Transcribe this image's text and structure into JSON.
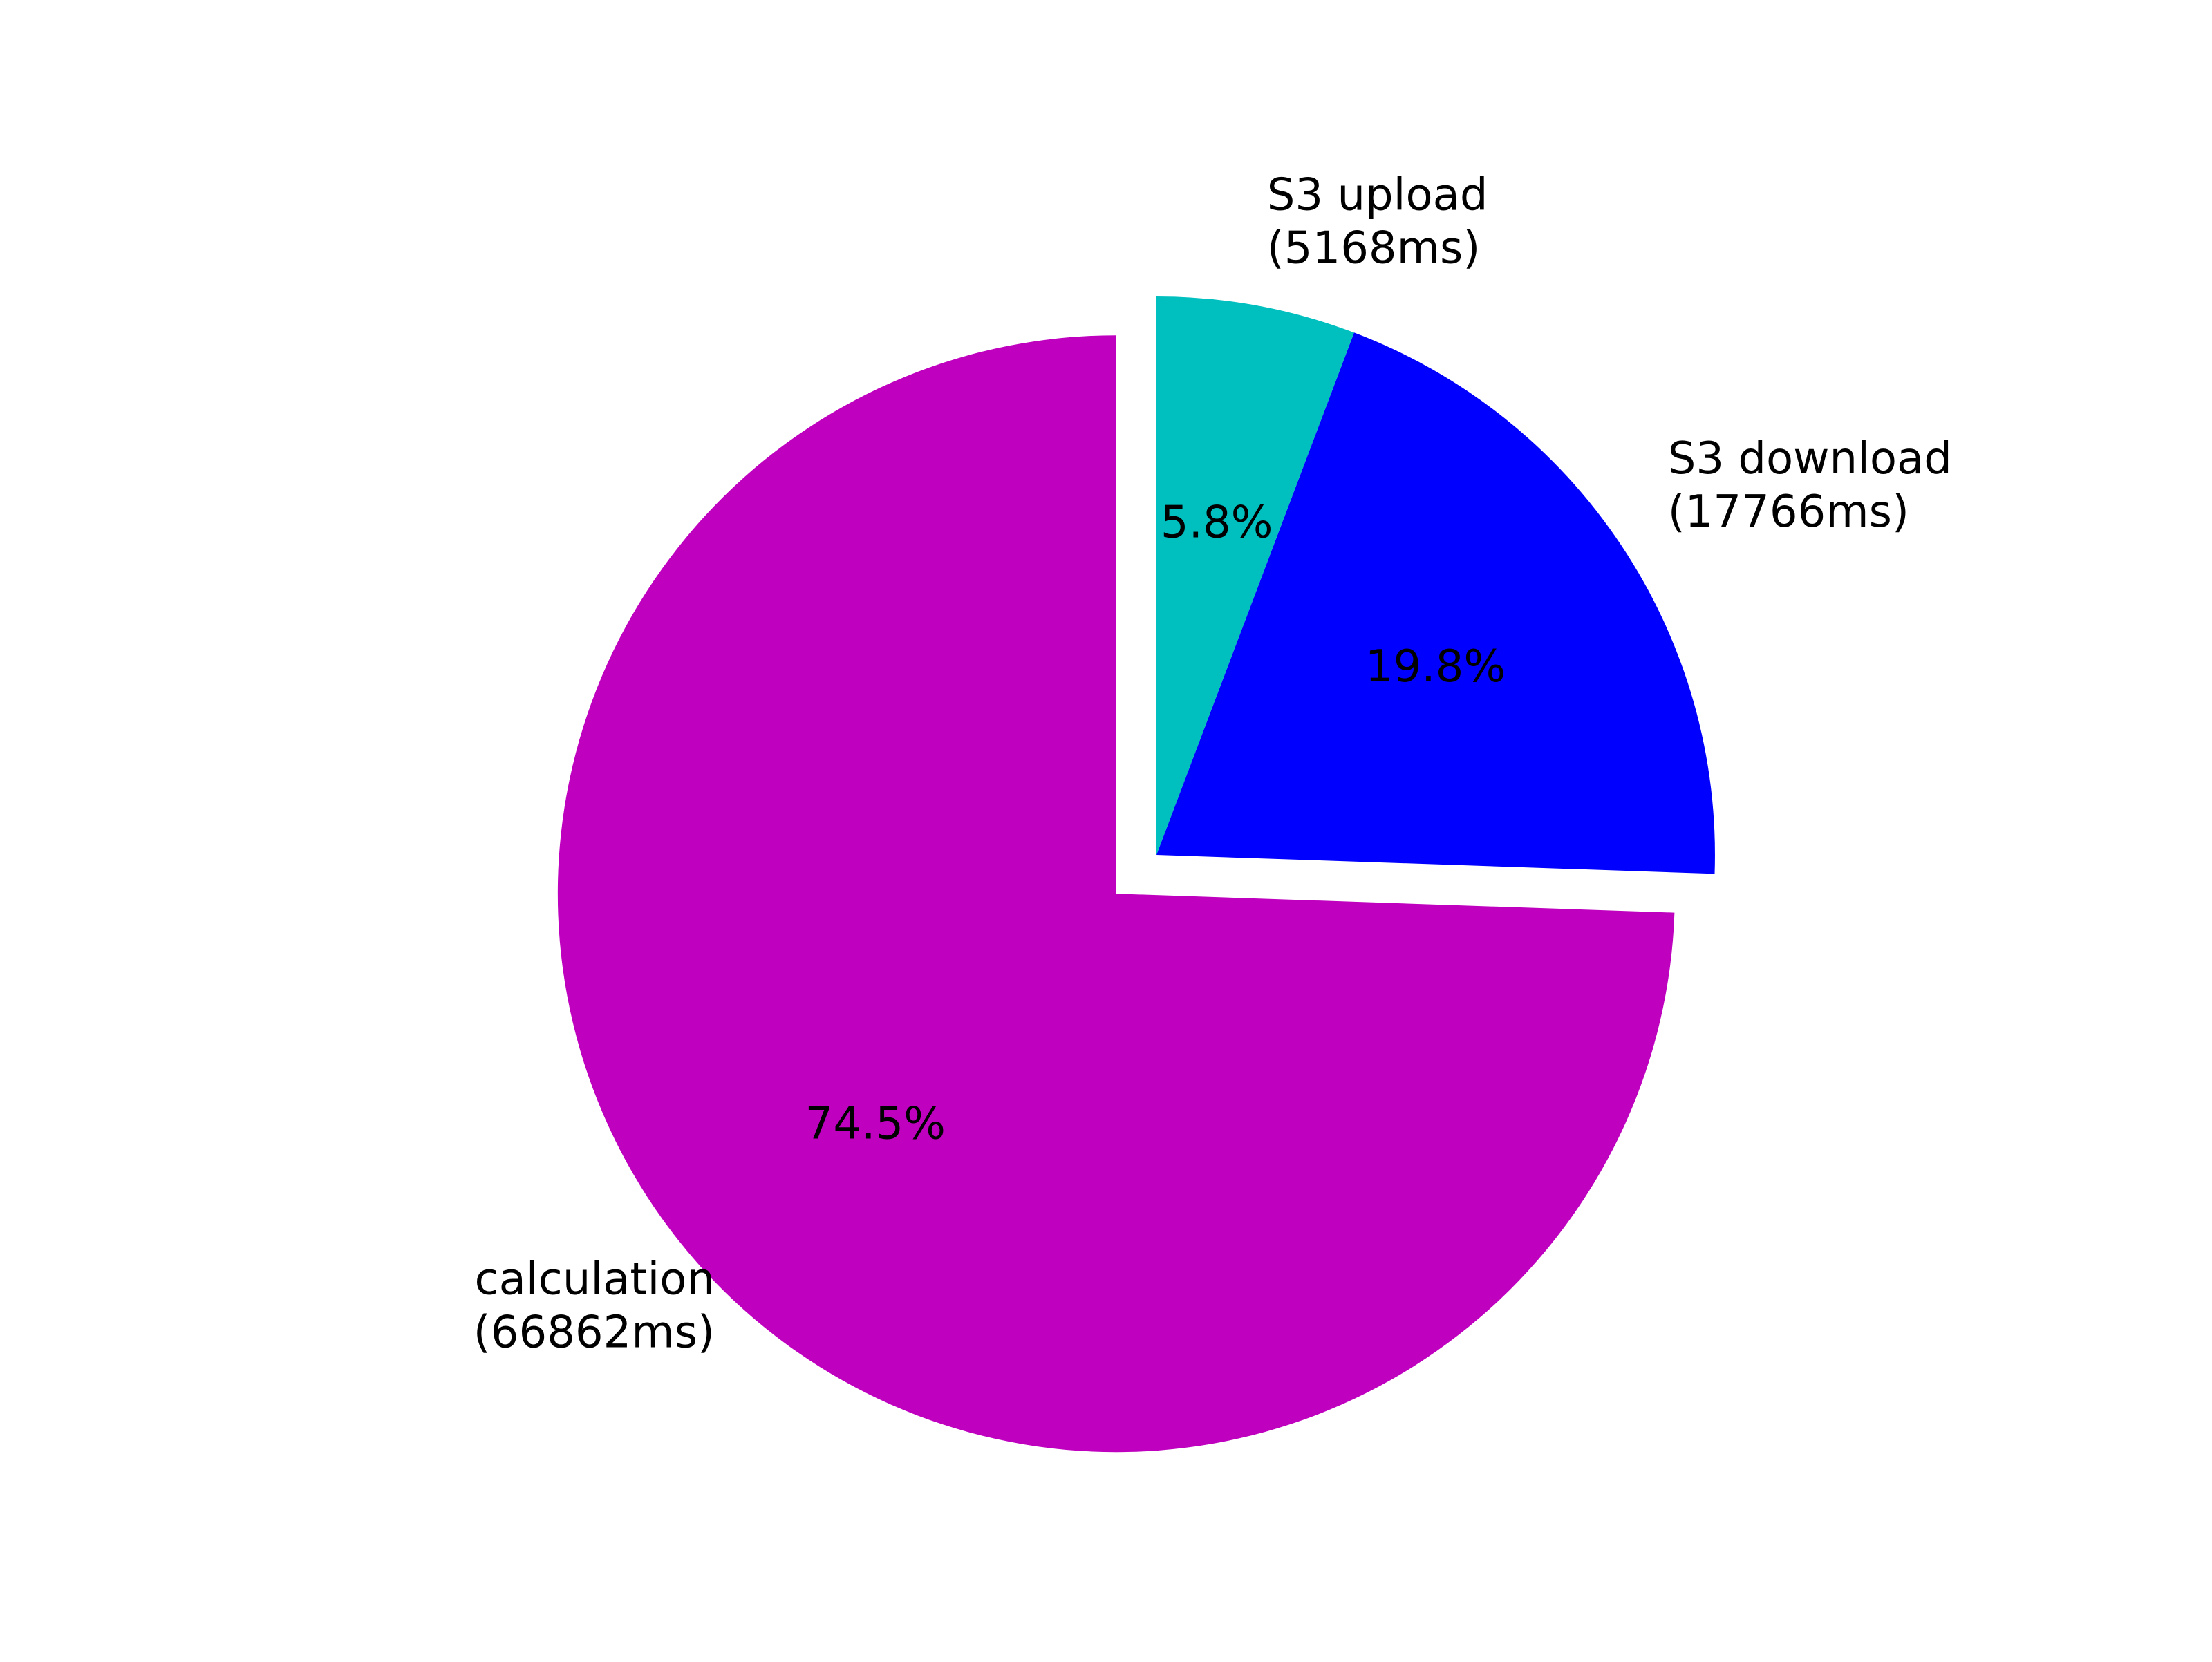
{
  "chart_data": {
    "type": "pie",
    "title": "",
    "start_angle_deg": 90,
    "direction": "counterclockwise",
    "slices": [
      {
        "label": "calculation",
        "value_text": "(66862ms)",
        "value": 66862,
        "pct_label": "74.5%",
        "color": "#bf00bf",
        "exploded": true
      },
      {
        "label": "S3 download",
        "value_text": "(17766ms)",
        "value": 17766,
        "pct_label": "19.8%",
        "color": "#0000ff",
        "exploded": false
      },
      {
        "label": "S3 upload",
        "value_text": "(5168ms)",
        "value": 5168,
        "pct_label": "5.8%",
        "color": "#00bfbf",
        "exploded": false
      }
    ]
  }
}
